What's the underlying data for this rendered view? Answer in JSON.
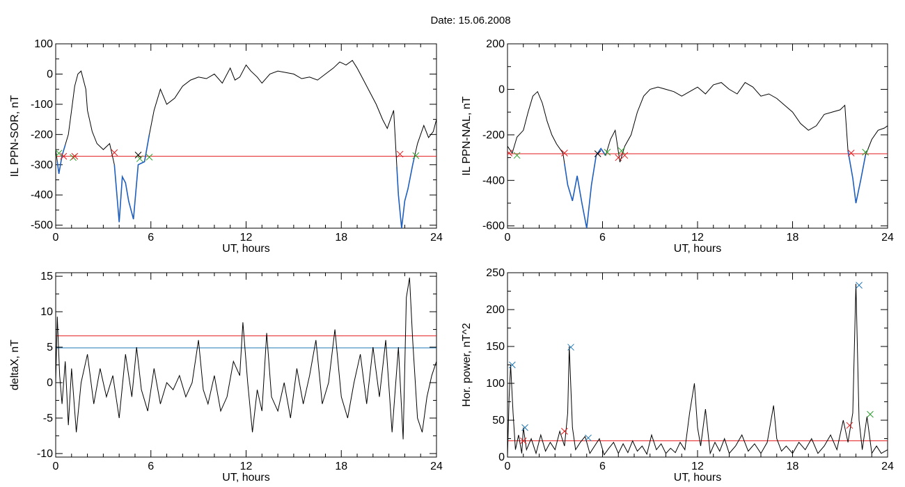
{
  "page": {
    "title": "Date:  15.06.2008"
  },
  "colors": {
    "axis": "#000000",
    "trace": "#000000",
    "highlight": "#1f5fbf",
    "threshold_red": "#e31a1c",
    "threshold_blue": "#1f77b4",
    "marker_red": "#e31a1c",
    "marker_green": "#2ca02c",
    "marker_blue": "#1f77b4",
    "marker_black": "#000000"
  },
  "chart_data": [
    {
      "id": "sor",
      "type": "line",
      "xlabel": "UT, hours",
      "ylabel": "IL PPN-SOR, nT",
      "xlim": [
        0,
        24
      ],
      "ylim": [
        -510,
        100
      ],
      "xticks": [
        0,
        6,
        12,
        18,
        24
      ],
      "yticks": [
        100,
        0,
        -100,
        -200,
        -300,
        -400,
        -500
      ],
      "grid": false,
      "series": [
        {
          "role": "main",
          "x": [
            0,
            0.2,
            0.4,
            0.8,
            1.0,
            1.2,
            1.4,
            1.6,
            1.9,
            2.0,
            2.3,
            2.6,
            3.0,
            3.4,
            3.7,
            4.0,
            4.2,
            4.4,
            4.6,
            4.9,
            5.2,
            5.6,
            5.9,
            6.2,
            6.6,
            7.0,
            7.5,
            8.0,
            8.5,
            9.0,
            9.5,
            10.0,
            10.5,
            11.0,
            11.3,
            11.6,
            12.0,
            12.3,
            12.7,
            13.0,
            13.5,
            14.0,
            14.5,
            15.0,
            15.5,
            16.0,
            16.5,
            17.0,
            17.5,
            17.9,
            18.3,
            18.7,
            19.0,
            19.4,
            19.8,
            20.2,
            20.6,
            20.9,
            21.3,
            21.6,
            21.8,
            22.0,
            22.2,
            22.5,
            22.8,
            23.2,
            23.5,
            23.8,
            24.0
          ],
          "values": [
            -250,
            -330,
            -270,
            -200,
            -120,
            -40,
            0,
            10,
            -50,
            -120,
            -190,
            -230,
            -250,
            -230,
            -300,
            -490,
            -340,
            -360,
            -420,
            -480,
            -300,
            -290,
            -200,
            -120,
            -50,
            -100,
            -80,
            -40,
            -20,
            -10,
            -15,
            0,
            -30,
            20,
            -20,
            -10,
            30,
            10,
            -10,
            -30,
            0,
            10,
            5,
            0,
            -15,
            -10,
            -20,
            0,
            20,
            40,
            30,
            45,
            20,
            -20,
            -60,
            -100,
            -150,
            -180,
            -120,
            -400,
            -510,
            -420,
            -380,
            -300,
            -230,
            -170,
            -210,
            -190,
            -150
          ]
        }
      ],
      "threshold_lines": [
        {
          "y": -272,
          "color": "red"
        }
      ],
      "highlight_segments": [
        [
          0.1,
          0.6
        ],
        [
          3.7,
          5.9
        ],
        [
          21.5,
          22.6
        ]
      ],
      "markers": [
        {
          "x": 0.2,
          "y": -262,
          "symbol": "x",
          "color": "green"
        },
        {
          "x": 0.5,
          "y": -272,
          "symbol": "x",
          "color": "red"
        },
        {
          "x": 1.1,
          "y": -276,
          "symbol": "x",
          "color": "green"
        },
        {
          "x": 1.2,
          "y": -272,
          "symbol": "x",
          "color": "red"
        },
        {
          "x": 3.7,
          "y": -260,
          "symbol": "x",
          "color": "red"
        },
        {
          "x": 5.2,
          "y": -268,
          "symbol": "x",
          "color": "black"
        },
        {
          "x": 5.3,
          "y": -280,
          "symbol": "x",
          "color": "green"
        },
        {
          "x": 5.9,
          "y": -275,
          "symbol": "x",
          "color": "green"
        },
        {
          "x": 21.7,
          "y": -265,
          "symbol": "x",
          "color": "red"
        },
        {
          "x": 22.7,
          "y": -270,
          "symbol": "x",
          "color": "green"
        }
      ]
    },
    {
      "id": "nal",
      "type": "line",
      "xlabel": "UT, hours",
      "ylabel": "IL PPN-NAL, nT",
      "xlim": [
        0,
        24
      ],
      "ylim": [
        -610,
        200
      ],
      "xticks": [
        0,
        6,
        12,
        18,
        24
      ],
      "yticks": [
        200,
        0,
        -200,
        -400,
        -600
      ],
      "grid": false,
      "series": [
        {
          "role": "main",
          "x": [
            0,
            0.3,
            0.6,
            1.0,
            1.3,
            1.6,
            1.9,
            2.2,
            2.5,
            2.8,
            3.1,
            3.5,
            3.8,
            4.1,
            4.4,
            4.7,
            5.0,
            5.3,
            5.6,
            5.9,
            6.2,
            6.5,
            6.8,
            7.1,
            7.4,
            7.8,
            8.2,
            8.6,
            9.0,
            9.5,
            10.0,
            10.5,
            11.0,
            11.5,
            12.0,
            12.5,
            13.0,
            13.5,
            14.0,
            14.5,
            15.0,
            15.5,
            16.0,
            16.5,
            17.0,
            17.5,
            18.0,
            18.5,
            19.0,
            19.5,
            20.0,
            20.5,
            21.0,
            21.3,
            21.5,
            21.8,
            22.0,
            22.3,
            22.6,
            23.0,
            23.4,
            23.8,
            24.0
          ],
          "values": [
            -250,
            -280,
            -210,
            -180,
            -100,
            -30,
            -10,
            -60,
            -140,
            -200,
            -240,
            -280,
            -420,
            -490,
            -380,
            -500,
            -610,
            -420,
            -290,
            -260,
            -290,
            -220,
            -180,
            -320,
            -250,
            -200,
            -100,
            -30,
            0,
            10,
            0,
            -10,
            -30,
            -10,
            10,
            -20,
            20,
            30,
            0,
            -20,
            30,
            10,
            -30,
            -20,
            -40,
            -70,
            -100,
            -150,
            -180,
            -160,
            -110,
            -100,
            -90,
            -70,
            -270,
            -390,
            -500,
            -400,
            -290,
            -220,
            -180,
            -170,
            -160
          ]
        }
      ],
      "threshold_lines": [
        {
          "y": -283,
          "color": "red"
        }
      ],
      "highlight_segments": [
        [
          3.6,
          6.2
        ],
        [
          21.5,
          22.6
        ]
      ],
      "markers": [
        {
          "x": 0.1,
          "y": -280,
          "symbol": "x",
          "color": "red"
        },
        {
          "x": 0.6,
          "y": -290,
          "symbol": "x",
          "color": "green"
        },
        {
          "x": 3.6,
          "y": -280,
          "symbol": "x",
          "color": "red"
        },
        {
          "x": 5.7,
          "y": -283,
          "symbol": "x",
          "color": "black"
        },
        {
          "x": 6.3,
          "y": -276,
          "symbol": "x",
          "color": "green"
        },
        {
          "x": 7.0,
          "y": -300,
          "symbol": "x",
          "color": "red"
        },
        {
          "x": 7.2,
          "y": -270,
          "symbol": "x",
          "color": "green"
        },
        {
          "x": 7.4,
          "y": -290,
          "symbol": "x",
          "color": "red"
        },
        {
          "x": 21.7,
          "y": -280,
          "symbol": "x",
          "color": "red"
        },
        {
          "x": 22.6,
          "y": -276,
          "symbol": "x",
          "color": "green"
        }
      ]
    },
    {
      "id": "deltax",
      "type": "line",
      "xlabel": "UT, hours",
      "ylabel": "deltaX, nT",
      "xlim": [
        0,
        24
      ],
      "ylim": [
        -10.5,
        15.5
      ],
      "xticks": [
        0,
        6,
        12,
        18,
        24
      ],
      "yticks": [
        15,
        10,
        5,
        0,
        -5,
        -10
      ],
      "grid": false,
      "series": [
        {
          "role": "main",
          "x": [
            0,
            0.1,
            0.25,
            0.4,
            0.6,
            0.8,
            1.0,
            1.3,
            1.6,
            2.0,
            2.4,
            2.8,
            3.2,
            3.6,
            4.0,
            4.4,
            4.8,
            5.1,
            5.4,
            5.8,
            6.2,
            6.6,
            7.0,
            7.4,
            7.8,
            8.2,
            8.6,
            9.0,
            9.3,
            9.6,
            10.0,
            10.4,
            10.8,
            11.2,
            11.6,
            11.8,
            12.1,
            12.4,
            12.7,
            13.0,
            13.3,
            13.6,
            14.0,
            14.4,
            14.8,
            15.2,
            15.6,
            16.0,
            16.4,
            16.8,
            17.2,
            17.6,
            18.0,
            18.4,
            18.8,
            19.2,
            19.6,
            20.0,
            20.4,
            20.8,
            21.2,
            21.6,
            21.9,
            22.1,
            22.3,
            22.5,
            22.8,
            23.1,
            23.4,
            23.7,
            24.0
          ],
          "values": [
            0,
            9.3,
            1,
            -3,
            3,
            -6,
            2,
            -7,
            0,
            4,
            -3,
            2,
            -2,
            1,
            -5,
            4,
            -2,
            5,
            -1,
            -4,
            2,
            -3,
            0,
            -1,
            1,
            -2,
            0,
            6,
            -1,
            -3,
            1,
            -4,
            -2,
            3,
            1,
            8.5,
            0,
            -7,
            -1,
            -4,
            7,
            -2,
            -4,
            0,
            -5,
            2,
            -3,
            1,
            6,
            -3,
            0,
            7.5,
            -2,
            -5,
            0,
            4,
            -3,
            5,
            -2,
            6,
            -7,
            5,
            -8,
            12,
            14.8,
            6,
            -5,
            -7,
            -2,
            1,
            3
          ]
        }
      ],
      "threshold_lines": [
        {
          "y": 6.6,
          "color": "red"
        },
        {
          "y": 4.9,
          "color": "blue"
        }
      ],
      "highlight_segments": [],
      "markers": []
    },
    {
      "id": "hpower",
      "type": "line",
      "xlabel": "UT, hours",
      "ylabel": "Hor. power, nT^2",
      "xlim": [
        0,
        24
      ],
      "ylim": [
        0,
        250
      ],
      "xticks": [
        0,
        6,
        12,
        18,
        24
      ],
      "yticks": [
        250,
        200,
        150,
        100,
        50,
        0
      ],
      "grid": false,
      "series": [
        {
          "role": "main",
          "x": [
            0,
            0.1,
            0.2,
            0.35,
            0.5,
            0.7,
            0.9,
            1.0,
            1.2,
            1.5,
            1.8,
            2.1,
            2.4,
            2.7,
            3.0,
            3.3,
            3.6,
            3.8,
            3.9,
            4.1,
            4.3,
            4.6,
            4.9,
            5.2,
            5.5,
            5.8,
            6.1,
            6.4,
            6.7,
            7.0,
            7.3,
            7.6,
            7.9,
            8.2,
            8.5,
            8.8,
            9.1,
            9.4,
            9.7,
            10.0,
            10.3,
            10.6,
            10.9,
            11.2,
            11.5,
            11.8,
            12.0,
            12.2,
            12.5,
            12.8,
            13.1,
            13.4,
            13.7,
            14.0,
            14.4,
            14.8,
            15.2,
            15.6,
            16.0,
            16.4,
            16.8,
            17.0,
            17.3,
            17.6,
            18.0,
            18.4,
            18.8,
            19.2,
            19.6,
            20.0,
            20.4,
            20.8,
            21.2,
            21.5,
            21.8,
            22.0,
            22.2,
            22.4,
            22.7,
            23.0,
            23.3,
            23.6,
            24.0
          ],
          "values": [
            0,
            80,
            125,
            60,
            10,
            30,
            5,
            40,
            10,
            25,
            5,
            30,
            8,
            20,
            10,
            35,
            15,
            60,
            150,
            40,
            10,
            20,
            28,
            5,
            15,
            25,
            3,
            12,
            20,
            5,
            18,
            6,
            22,
            8,
            15,
            4,
            30,
            10,
            18,
            5,
            12,
            6,
            20,
            10,
            60,
            100,
            40,
            15,
            65,
            5,
            20,
            8,
            25,
            5,
            15,
            30,
            8,
            18,
            5,
            20,
            70,
            25,
            8,
            15,
            5,
            20,
            10,
            25,
            5,
            15,
            30,
            10,
            50,
            20,
            60,
            235,
            50,
            10,
            55,
            5,
            15,
            5,
            10
          ]
        }
      ],
      "threshold_lines": [
        {
          "y": 22,
          "color": "red"
        }
      ],
      "highlight_segments": [],
      "markers": [
        {
          "x": 0.3,
          "y": 125,
          "symbol": "x",
          "color": "blue"
        },
        {
          "x": 1.1,
          "y": 40,
          "symbol": "x",
          "color": "blue"
        },
        {
          "x": 1.0,
          "y": 22,
          "symbol": "x",
          "color": "red"
        },
        {
          "x": 3.6,
          "y": 35,
          "symbol": "x",
          "color": "red"
        },
        {
          "x": 4.0,
          "y": 149,
          "symbol": "x",
          "color": "blue"
        },
        {
          "x": 5.1,
          "y": 26,
          "symbol": "x",
          "color": "blue"
        },
        {
          "x": 21.6,
          "y": 43,
          "symbol": "x",
          "color": "red"
        },
        {
          "x": 22.2,
          "y": 233,
          "symbol": "x",
          "color": "blue"
        },
        {
          "x": 22.9,
          "y": 58,
          "symbol": "x",
          "color": "green"
        }
      ]
    }
  ]
}
